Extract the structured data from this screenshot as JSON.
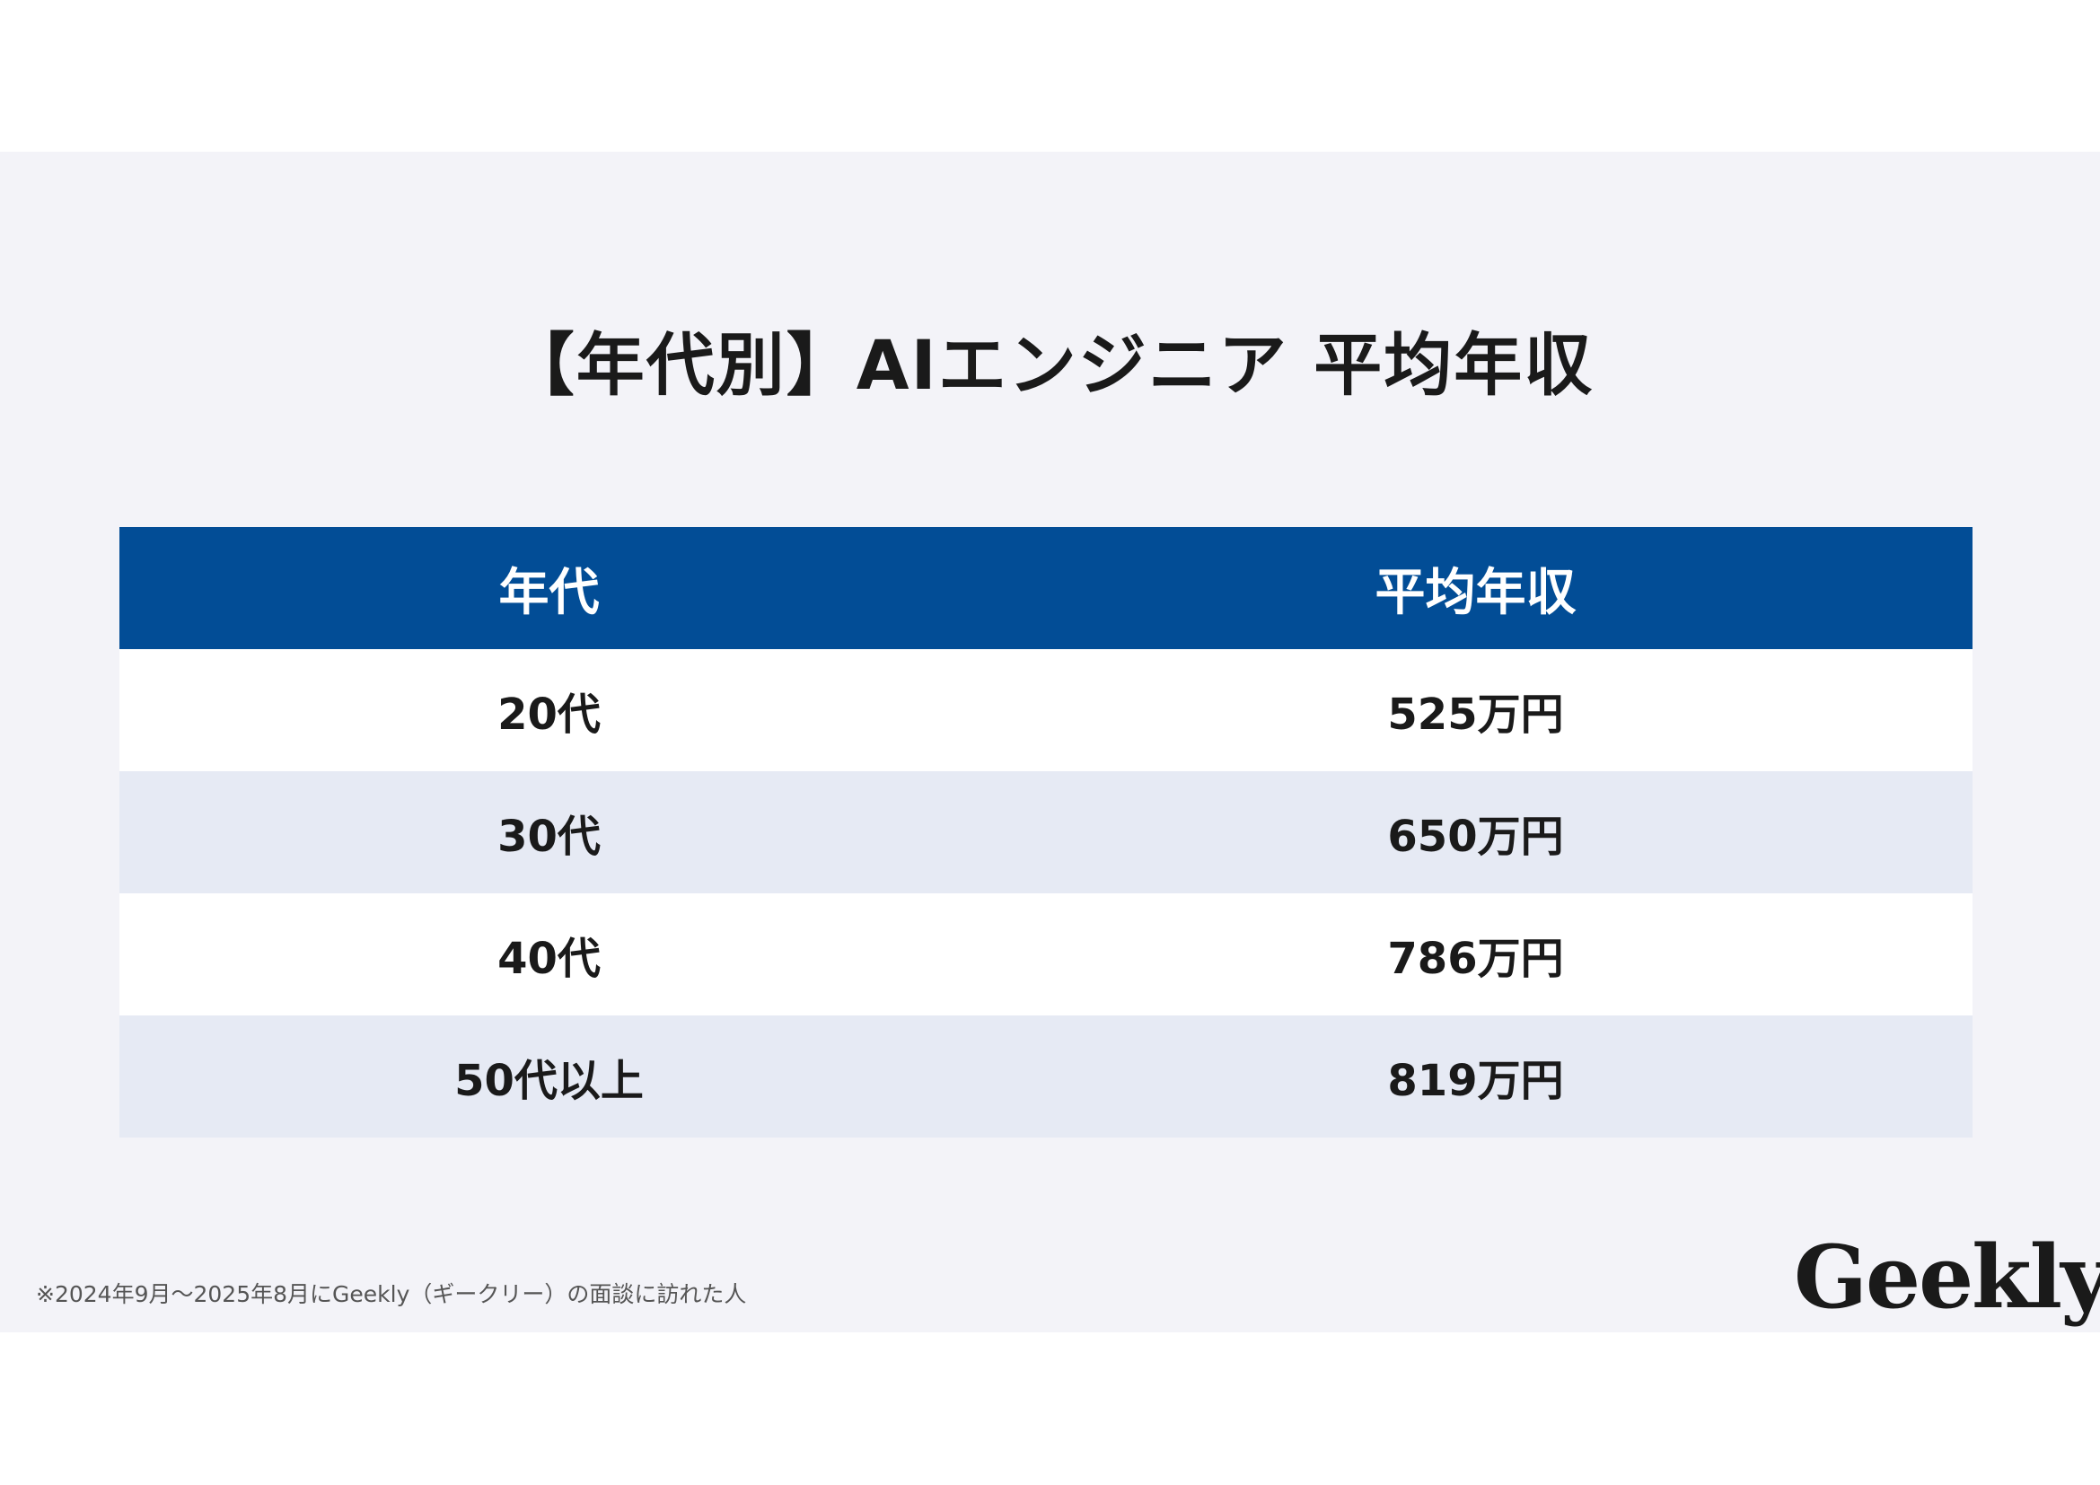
{
  "title": "【年代別】AIエンジニア 平均年収",
  "table": {
    "headers": [
      "年代",
      "平均年収"
    ],
    "rows": [
      {
        "age": "20代",
        "salary": "525万円"
      },
      {
        "age": "30代",
        "salary": "650万円"
      },
      {
        "age": "40代",
        "salary": "786万円"
      },
      {
        "age": "50代以上",
        "salary": "819万円"
      }
    ]
  },
  "footnote": "※2024年9月～2025年8月にGeekly（ギークリー）の面談に訪れた人",
  "logo": "Geekly",
  "colors": {
    "header": "#024d96",
    "stripe": "#e6eaf4",
    "background": "#f3f3f8"
  }
}
